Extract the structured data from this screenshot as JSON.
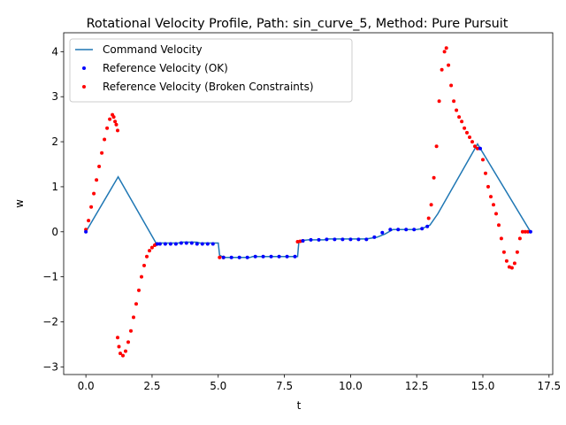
{
  "chart_data": {
    "type": "line",
    "title": "Rotational Velocity Profile, Path: sin_curve_5, Method: Pure Pursuit",
    "xlabel": "t",
    "ylabel": "w",
    "xlim": [
      -0.84,
      17.64
    ],
    "ylim": [
      -3.17,
      4.42
    ],
    "xticks": [
      0.0,
      2.5,
      5.0,
      7.5,
      10.0,
      12.5,
      15.0,
      17.5
    ],
    "xtick_labels": [
      "0.0",
      "2.5",
      "5.0",
      "7.5",
      "10.0",
      "12.5",
      "15.0",
      "17.5"
    ],
    "yticks": [
      -3,
      -2,
      -1,
      0,
      1,
      2,
      3,
      4
    ],
    "ytick_labels": [
      "−3",
      "−2",
      "−1",
      "0",
      "1",
      "2",
      "3",
      "4"
    ],
    "grid": false,
    "legend_position": "upper-left",
    "series": [
      {
        "name": "Command Velocity",
        "kind": "line",
        "color": "#1f77b4",
        "x": [
          0.0,
          1.22,
          2.65,
          3.5,
          3.6,
          4.2,
          4.3,
          5.0,
          5.05,
          5.2,
          6.2,
          6.3,
          8.0,
          8.05,
          8.4,
          9.0,
          9.1,
          10.6,
          11.0,
          11.3,
          11.6,
          12.5,
          12.7,
          13.0,
          13.3,
          14.8,
          16.8
        ],
        "y": [
          0.0,
          1.22,
          -0.25,
          -0.25,
          -0.23,
          -0.23,
          -0.25,
          -0.25,
          -0.52,
          -0.57,
          -0.57,
          -0.55,
          -0.55,
          -0.2,
          -0.18,
          -0.18,
          -0.16,
          -0.16,
          -0.12,
          -0.05,
          0.05,
          0.05,
          0.07,
          0.15,
          0.4,
          1.95,
          0.0
        ]
      },
      {
        "name": "Reference Velocity (OK)",
        "kind": "scatter",
        "color": "#0000ff",
        "x": [
          0.0,
          2.7,
          2.8,
          3.0,
          3.2,
          3.4,
          3.6,
          3.8,
          4.0,
          4.2,
          4.4,
          4.6,
          4.8,
          5.2,
          5.5,
          5.8,
          6.1,
          6.4,
          6.7,
          7.0,
          7.3,
          7.6,
          7.9,
          8.2,
          8.5,
          8.8,
          9.1,
          9.4,
          9.7,
          10.0,
          10.3,
          10.6,
          10.9,
          11.2,
          11.5,
          11.8,
          12.1,
          12.4,
          12.7,
          12.9,
          14.9,
          16.8
        ],
        "y": [
          0.0,
          -0.27,
          -0.27,
          -0.27,
          -0.27,
          -0.27,
          -0.25,
          -0.25,
          -0.25,
          -0.27,
          -0.27,
          -0.27,
          -0.27,
          -0.57,
          -0.57,
          -0.57,
          -0.57,
          -0.55,
          -0.55,
          -0.55,
          -0.55,
          -0.55,
          -0.55,
          -0.2,
          -0.18,
          -0.18,
          -0.17,
          -0.17,
          -0.17,
          -0.17,
          -0.17,
          -0.17,
          -0.12,
          -0.02,
          0.05,
          0.05,
          0.05,
          0.05,
          0.07,
          0.12,
          1.85,
          0.0
        ]
      },
      {
        "name": "Reference Velocity (Broken Constraints)",
        "kind": "scatter",
        "color": "#ff0000",
        "x": [
          0.0,
          0.1,
          0.2,
          0.3,
          0.4,
          0.5,
          0.6,
          0.7,
          0.8,
          0.9,
          1.0,
          1.05,
          1.1,
          1.15,
          1.2,
          1.2,
          1.25,
          1.3,
          1.4,
          1.5,
          1.6,
          1.7,
          1.8,
          1.9,
          2.0,
          2.1,
          2.2,
          2.3,
          2.4,
          2.5,
          2.6,
          2.65,
          5.05,
          5.2,
          8.0,
          8.1,
          8.2,
          12.95,
          13.05,
          13.15,
          13.25,
          13.35,
          13.45,
          13.55,
          13.62,
          13.7,
          13.8,
          13.9,
          14.0,
          14.1,
          14.2,
          14.3,
          14.4,
          14.5,
          14.6,
          14.7,
          14.8,
          15.0,
          15.1,
          15.2,
          15.3,
          15.4,
          15.5,
          15.6,
          15.7,
          15.8,
          15.9,
          16.0,
          16.1,
          16.2,
          16.3,
          16.4,
          16.5,
          16.6,
          16.7
        ],
        "y": [
          0.05,
          0.25,
          0.55,
          0.85,
          1.15,
          1.45,
          1.75,
          2.05,
          2.3,
          2.5,
          2.6,
          2.55,
          2.45,
          2.38,
          2.25,
          -2.35,
          -2.55,
          -2.7,
          -2.75,
          -2.65,
          -2.45,
          -2.2,
          -1.9,
          -1.6,
          -1.3,
          -1.0,
          -0.75,
          -0.55,
          -0.42,
          -0.35,
          -0.3,
          -0.28,
          -0.57,
          -0.57,
          -0.22,
          -0.21,
          -0.2,
          0.3,
          0.6,
          1.2,
          1.9,
          2.9,
          3.6,
          4.0,
          4.08,
          3.7,
          3.25,
          2.9,
          2.7,
          2.55,
          2.45,
          2.3,
          2.2,
          2.1,
          2.0,
          1.9,
          1.85,
          1.6,
          1.3,
          1.0,
          0.78,
          0.6,
          0.4,
          0.15,
          -0.15,
          -0.45,
          -0.65,
          -0.78,
          -0.8,
          -0.7,
          -0.45,
          -0.15,
          0.0,
          0.0,
          0.0
        ]
      }
    ]
  }
}
